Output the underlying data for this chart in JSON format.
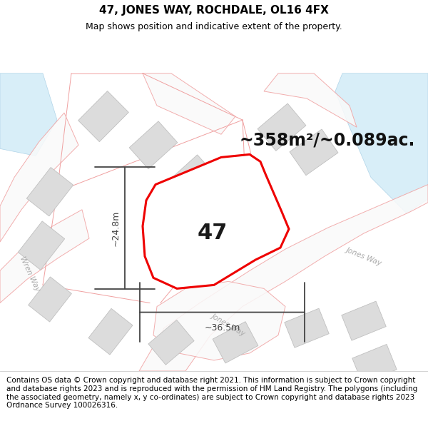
{
  "title": "47, JONES WAY, ROCHDALE, OL16 4FX",
  "subtitle": "Map shows position and indicative extent of the property.",
  "area_label": "~358m²/~0.089ac.",
  "plot_number": "47",
  "dim_width": "~36.5m",
  "dim_height": "~24.8m",
  "footer": "Contains OS data © Crown copyright and database right 2021. This information is subject to Crown copyright and database rights 2023 and is reproduced with the permission of HM Land Registry. The polygons (including the associated geometry, namely x, y co-ordinates) are subject to Crown copyright and database rights 2023 Ordnance Survey 100026316.",
  "map_bg": "#ffffff",
  "road_line_color": "#f0a0a0",
  "road_fill_color": "#fde8e8",
  "building_face": "#dcdcdc",
  "building_edge": "#c0c0c0",
  "plot_fill": "#ffffff",
  "plot_edge": "#ee0000",
  "dim_color": "#444444",
  "water_color": "#d8eef8",
  "water_edge": "#b0d4e8",
  "street_color": "#aaaaaa",
  "title_fontsize": 11,
  "subtitle_fontsize": 9,
  "area_fontsize": 17,
  "plot_num_fontsize": 22,
  "footer_fontsize": 7.5,
  "dim_fontsize": 9
}
